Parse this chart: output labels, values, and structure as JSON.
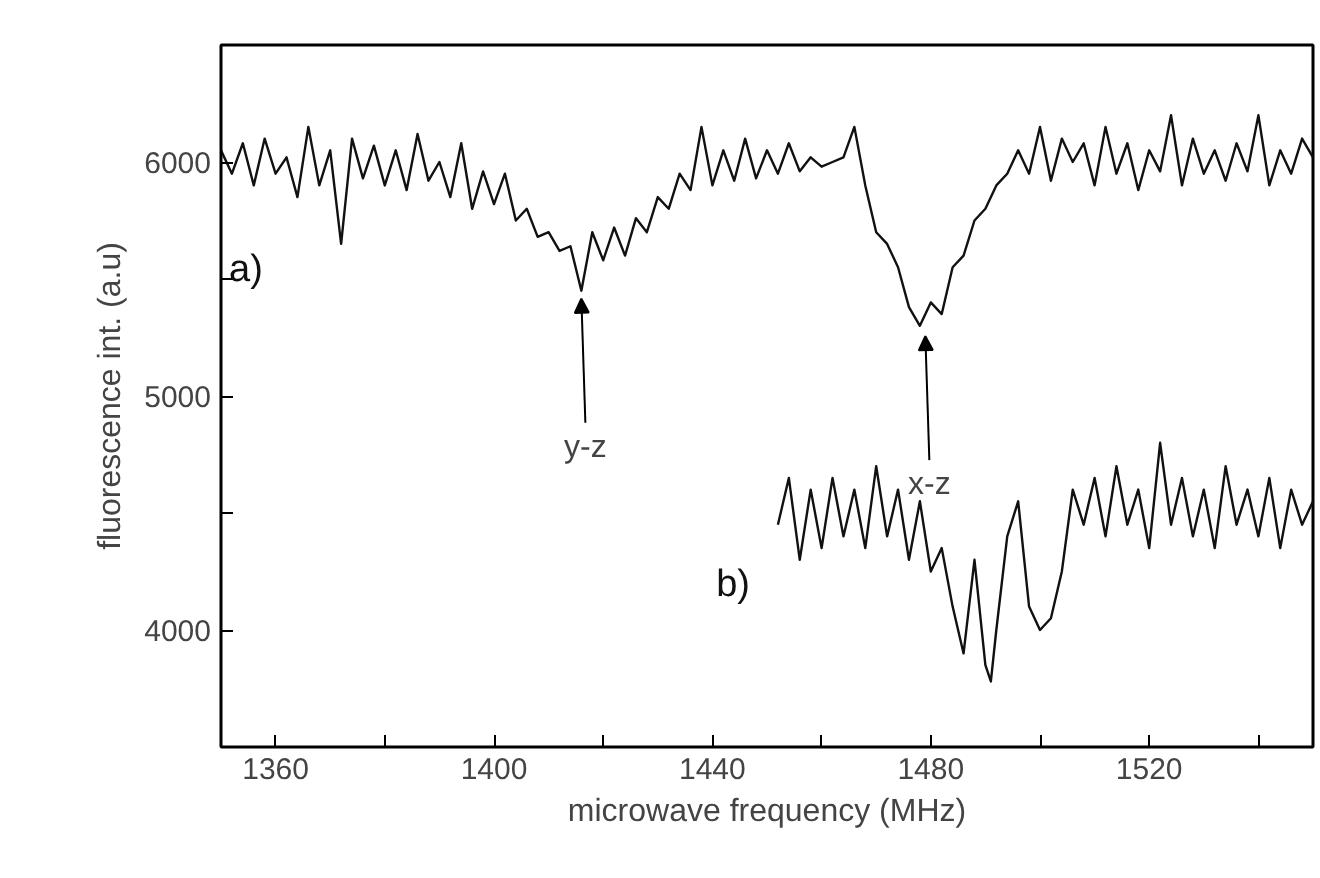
{
  "chart_data": {
    "type": "line",
    "xlabel": "microwave frequency (MHz)",
    "ylabel": "fluorescence int. (a.u)",
    "xlim": [
      1350,
      1550
    ],
    "ylim": [
      3500,
      6500
    ],
    "xticks": [
      1360,
      {
        "value": 1380,
        "label": null
      },
      1400,
      {
        "value": 1420,
        "label": null
      },
      1440,
      {
        "value": 1460,
        "label": null
      },
      1480,
      {
        "value": 1500,
        "label": null
      },
      1520,
      {
        "value": 1540,
        "label": null
      }
    ],
    "yticks": [
      {
        "value": 3500,
        "label": null
      },
      4000,
      {
        "value": 4500,
        "label": null
      },
      5000,
      {
        "value": 5500,
        "label": null
      },
      6000,
      {
        "value": 6500,
        "label": null
      }
    ],
    "grid": false,
    "legend": false,
    "marker": "none",
    "line_style": "solid",
    "series": [
      {
        "name": "a)",
        "color": "#111111",
        "x": [
          1350,
          1352,
          1354,
          1356,
          1358,
          1360,
          1362,
          1364,
          1366,
          1368,
          1370,
          1372,
          1374,
          1376,
          1378,
          1380,
          1382,
          1384,
          1386,
          1388,
          1390,
          1392,
          1394,
          1396,
          1398,
          1400,
          1402,
          1404,
          1406,
          1408,
          1410,
          1412,
          1414,
          1416,
          1418,
          1420,
          1422,
          1424,
          1426,
          1428,
          1430,
          1432,
          1434,
          1436,
          1438,
          1440,
          1442,
          1444,
          1446,
          1448,
          1450,
          1452,
          1454,
          1456,
          1458,
          1460,
          1462,
          1464,
          1466,
          1468,
          1470,
          1472,
          1474,
          1476,
          1478,
          1480,
          1482,
          1484,
          1486,
          1488,
          1490,
          1492,
          1494,
          1496,
          1498,
          1500,
          1502,
          1504,
          1506,
          1508,
          1510,
          1512,
          1514,
          1516,
          1518,
          1520,
          1522,
          1524,
          1526,
          1528,
          1530,
          1532,
          1534,
          1536,
          1538,
          1540,
          1542,
          1544,
          1546,
          1548,
          1550
        ],
        "values": [
          6050,
          5950,
          6080,
          5900,
          6100,
          5950,
          6020,
          5850,
          6150,
          5900,
          6050,
          5650,
          6100,
          5930,
          6070,
          5900,
          6050,
          5880,
          6120,
          5920,
          6000,
          5850,
          6080,
          5800,
          5960,
          5820,
          5950,
          5750,
          5800,
          5680,
          5700,
          5620,
          5640,
          5450,
          5700,
          5580,
          5720,
          5600,
          5760,
          5700,
          5850,
          5800,
          5950,
          5880,
          6150,
          5900,
          6050,
          5920,
          6100,
          5930,
          6050,
          5950,
          6080,
          5960,
          6020,
          5980,
          6000,
          6020,
          6150,
          5900,
          5700,
          5650,
          5550,
          5380,
          5300,
          5400,
          5350,
          5550,
          5600,
          5750,
          5800,
          5900,
          5950,
          6050,
          5950,
          6150,
          5920,
          6100,
          6000,
          6080,
          5900,
          6150,
          5950,
          6080,
          5880,
          6050,
          5960,
          6200,
          5900,
          6100,
          5950,
          6050,
          5920,
          6080,
          5960,
          6200,
          5900,
          6050,
          5950,
          6100,
          6020
        ]
      },
      {
        "name": "b)",
        "color": "#111111",
        "x": [
          1452,
          1454,
          1456,
          1458,
          1460,
          1462,
          1464,
          1466,
          1468,
          1470,
          1472,
          1474,
          1476,
          1478,
          1480,
          1482,
          1484,
          1486,
          1488,
          1490,
          1491,
          1492,
          1494,
          1496,
          1498,
          1500,
          1502,
          1504,
          1506,
          1508,
          1510,
          1512,
          1514,
          1516,
          1518,
          1520,
          1522,
          1524,
          1526,
          1528,
          1530,
          1532,
          1534,
          1536,
          1538,
          1540,
          1542,
          1544,
          1546,
          1548,
          1550
        ],
        "values": [
          4450,
          4650,
          4300,
          4600,
          4350,
          4650,
          4400,
          4600,
          4350,
          4700,
          4400,
          4600,
          4300,
          4550,
          4250,
          4350,
          4100,
          3900,
          4300,
          3850,
          3780,
          4000,
          4400,
          4550,
          4100,
          4000,
          4050,
          4250,
          4600,
          4450,
          4650,
          4400,
          4700,
          4450,
          4600,
          4350,
          4800,
          4450,
          4650,
          4400,
          4600,
          4350,
          4700,
          4450,
          4600,
          4400,
          4650,
          4350,
          4600,
          4450,
          4550
        ]
      }
    ],
    "annotations": [
      {
        "text": "y-z",
        "x": 1416,
        "y": 5450
      },
      {
        "text": "x-z",
        "x": 1479,
        "y": 5290
      }
    ]
  }
}
